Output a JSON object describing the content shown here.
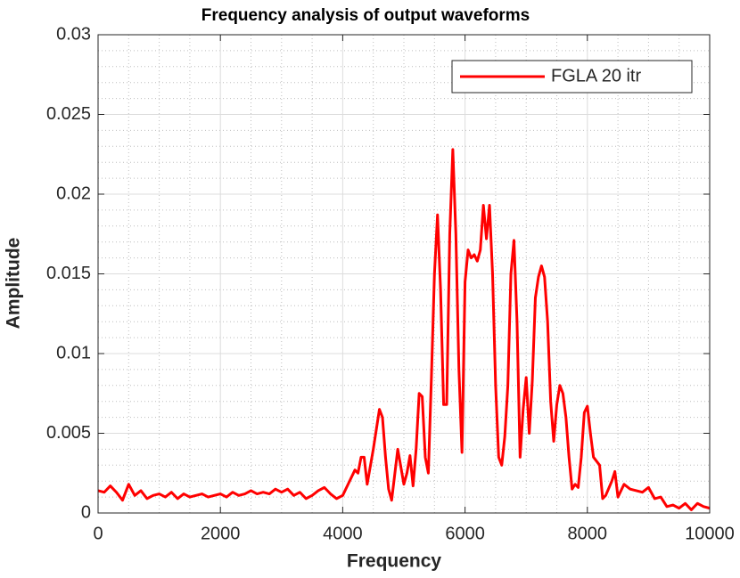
{
  "chart_data": {
    "type": "line",
    "title": "Frequency analysis of output waveforms",
    "xlabel": "Frequency",
    "ylabel": "Amplitude",
    "x": [
      0,
      100,
      200,
      300,
      400,
      500,
      600,
      700,
      800,
      900,
      1000,
      1100,
      1200,
      1300,
      1400,
      1500,
      1600,
      1700,
      1800,
      1900,
      2000,
      2100,
      2200,
      2300,
      2400,
      2500,
      2600,
      2700,
      2800,
      2900,
      3000,
      3100,
      3200,
      3300,
      3400,
      3500,
      3600,
      3700,
      3800,
      3900,
      4000,
      4100,
      4200,
      4250,
      4300,
      4350,
      4400,
      4500,
      4600,
      4650,
      4700,
      4750,
      4800,
      4900,
      5000,
      5050,
      5100,
      5150,
      5200,
      5250,
      5300,
      5350,
      5400,
      5450,
      5500,
      5550,
      5600,
      5650,
      5700,
      5750,
      5800,
      5850,
      5900,
      5950,
      6000,
      6050,
      6100,
      6150,
      6200,
      6250,
      6300,
      6350,
      6400,
      6450,
      6500,
      6550,
      6600,
      6650,
      6700,
      6750,
      6800,
      6850,
      6900,
      6950,
      7000,
      7050,
      7100,
      7150,
      7200,
      7250,
      7300,
      7350,
      7400,
      7450,
      7500,
      7550,
      7600,
      7650,
      7700,
      7750,
      7800,
      7850,
      7900,
      7950,
      8000,
      8050,
      8100,
      8200,
      8250,
      8300,
      8400,
      8450,
      8500,
      8600,
      8700,
      8800,
      8900,
      9000,
      9100,
      9200,
      9300,
      9400,
      9500,
      9600,
      9700,
      9800,
      9900,
      10000
    ],
    "series": [
      {
        "name": "FGLA 20 itr",
        "color": "#ff0000",
        "values": [
          0.0014,
          0.0013,
          0.0017,
          0.0013,
          0.0008,
          0.0018,
          0.0011,
          0.0014,
          0.0009,
          0.0011,
          0.0012,
          0.001,
          0.0013,
          0.0009,
          0.0012,
          0.001,
          0.0011,
          0.0012,
          0.001,
          0.0011,
          0.0012,
          0.001,
          0.0013,
          0.0011,
          0.0012,
          0.0014,
          0.0012,
          0.0013,
          0.0012,
          0.0015,
          0.0013,
          0.0015,
          0.0011,
          0.0013,
          0.0009,
          0.0011,
          0.0014,
          0.0016,
          0.0012,
          0.0009,
          0.0011,
          0.0019,
          0.0027,
          0.0025,
          0.0035,
          0.0035,
          0.0018,
          0.004,
          0.0065,
          0.006,
          0.0035,
          0.0015,
          0.0008,
          0.004,
          0.0018,
          0.0025,
          0.0036,
          0.0017,
          0.004,
          0.0075,
          0.0073,
          0.0035,
          0.0025,
          0.0085,
          0.015,
          0.0187,
          0.014,
          0.0068,
          0.0068,
          0.0175,
          0.0228,
          0.0175,
          0.009,
          0.0038,
          0.0145,
          0.0165,
          0.016,
          0.0162,
          0.0158,
          0.0165,
          0.0193,
          0.0172,
          0.0193,
          0.015,
          0.008,
          0.0035,
          0.003,
          0.0048,
          0.008,
          0.015,
          0.0171,
          0.012,
          0.0035,
          0.0065,
          0.0085,
          0.005,
          0.0083,
          0.0135,
          0.0148,
          0.0155,
          0.0148,
          0.012,
          0.007,
          0.0045,
          0.0068,
          0.008,
          0.0075,
          0.006,
          0.0035,
          0.0015,
          0.0018,
          0.0016,
          0.0035,
          0.0063,
          0.0067,
          0.005,
          0.0035,
          0.003,
          0.0009,
          0.0011,
          0.002,
          0.0026,
          0.001,
          0.0018,
          0.0015,
          0.0014,
          0.0013,
          0.0016,
          0.0009,
          0.001,
          0.0004,
          0.0005,
          0.0003,
          0.0006,
          0.0002,
          0.0006,
          0.0004,
          0.0003
        ]
      }
    ],
    "xlim": [
      0,
      10000
    ],
    "xticks": [
      0,
      2000,
      4000,
      6000,
      8000,
      10000
    ],
    "ylim": [
      0,
      0.03
    ],
    "yticks": [
      0,
      0.005,
      0.01,
      0.015,
      0.02,
      0.025,
      0.03
    ],
    "grid": true,
    "minor_grid": true,
    "legend": "northeast"
  }
}
